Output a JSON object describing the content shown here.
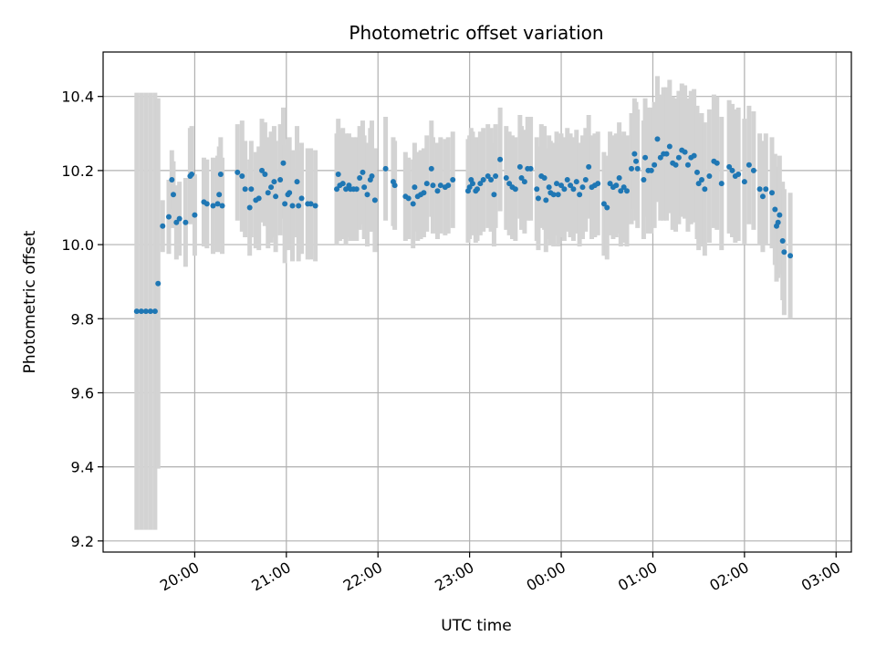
{
  "chart_data": {
    "type": "scatter",
    "title": "Photometric offset variation",
    "xlabel": "UTC time",
    "ylabel": "Photometric offset",
    "x_ticks": [
      "20:00",
      "21:00",
      "22:00",
      "23:00",
      "00:00",
      "01:00",
      "02:00",
      "03:00"
    ],
    "y_ticks": [
      "9.2",
      "9.4",
      "9.6",
      "9.8",
      "10.0",
      "10.2",
      "10.4"
    ],
    "x_unit": "hours since 19:00 UTC",
    "xlim": [
      "19:00",
      "03:10"
    ],
    "ylim": [
      9.17,
      10.52
    ],
    "grid": true,
    "colors": {
      "point": "#1f77b4",
      "errorbar": "#d3d3d3",
      "grid": "#b0b0b0"
    },
    "series": [
      {
        "points": [
          [
            "19:22",
            9.82,
            0.59
          ],
          [
            "19:25",
            9.82,
            0.59
          ],
          [
            "19:28",
            9.82,
            0.59
          ],
          [
            "19:31",
            9.82,
            0.59
          ],
          [
            "19:34",
            9.82,
            0.59
          ],
          [
            "19:36",
            9.895,
            0.5
          ],
          [
            "19:39",
            10.05,
            0.07
          ],
          [
            "19:43",
            10.075,
            0.1
          ],
          [
            "19:45",
            10.175,
            0.08
          ],
          [
            "19:46",
            10.135,
            0.09
          ],
          [
            "19:48",
            10.06,
            0.1
          ],
          [
            "19:50",
            10.07,
            0.1
          ],
          [
            "19:54",
            10.06,
            0.12
          ],
          [
            "19:57",
            10.185,
            0.13
          ],
          [
            "19:58",
            10.19,
            0.13
          ],
          [
            "20:00",
            10.08,
            0.11
          ],
          [
            "20:06",
            10.115,
            0.12
          ],
          [
            "20:08",
            10.11,
            0.12
          ],
          [
            "20:12",
            10.105,
            0.13
          ],
          [
            "20:15",
            10.11,
            0.13
          ],
          [
            "20:16",
            10.135,
            0.13
          ],
          [
            "20:17",
            10.19,
            0.1
          ],
          [
            "20:18",
            10.105,
            0.13
          ],
          [
            "20:28",
            10.195,
            0.13
          ],
          [
            "20:31",
            10.185,
            0.15
          ],
          [
            "20:33",
            10.15,
            0.13
          ],
          [
            "20:36",
            10.1,
            0.13
          ],
          [
            "20:37",
            10.15,
            0.13
          ],
          [
            "20:40",
            10.12,
            0.13
          ],
          [
            "20:42",
            10.125,
            0.14
          ],
          [
            "20:44",
            10.2,
            0.14
          ],
          [
            "20:46",
            10.19,
            0.14
          ],
          [
            "20:48",
            10.14,
            0.15
          ],
          [
            "20:50",
            10.155,
            0.15
          ],
          [
            "20:52",
            10.17,
            0.15
          ],
          [
            "20:53",
            10.13,
            0.15
          ],
          [
            "20:56",
            10.175,
            0.15
          ],
          [
            "20:58",
            10.22,
            0.15
          ],
          [
            "20:59",
            10.11,
            0.16
          ],
          [
            "21:01",
            10.135,
            0.15
          ],
          [
            "21:02",
            10.14,
            0.15
          ],
          [
            "21:04",
            10.105,
            0.15
          ],
          [
            "21:07",
            10.17,
            0.15
          ],
          [
            "21:08",
            10.105,
            0.15
          ],
          [
            "21:10",
            10.125,
            0.15
          ],
          [
            "21:14",
            10.11,
            0.15
          ],
          [
            "21:16",
            10.11,
            0.15
          ],
          [
            "21:19",
            10.105,
            0.15
          ],
          [
            "21:33",
            10.15,
            0.15
          ],
          [
            "21:34",
            10.19,
            0.15
          ],
          [
            "21:35",
            10.16,
            0.15
          ],
          [
            "21:37",
            10.165,
            0.15
          ],
          [
            "21:39",
            10.15,
            0.15
          ],
          [
            "21:41",
            10.16,
            0.14
          ],
          [
            "21:42",
            10.15,
            0.14
          ],
          [
            "21:44",
            10.15,
            0.14
          ],
          [
            "21:46",
            10.15,
            0.14
          ],
          [
            "21:48",
            10.18,
            0.14
          ],
          [
            "21:50",
            10.195,
            0.14
          ],
          [
            "21:51",
            10.155,
            0.14
          ],
          [
            "21:53",
            10.135,
            0.14
          ],
          [
            "21:55",
            10.175,
            0.14
          ],
          [
            "21:56",
            10.185,
            0.15
          ],
          [
            "21:58",
            10.12,
            0.14
          ],
          [
            "22:05",
            10.205,
            0.14
          ],
          [
            "22:10",
            10.17,
            0.12
          ],
          [
            "22:11",
            10.16,
            0.12
          ],
          [
            "22:18",
            10.13,
            0.12
          ],
          [
            "22:20",
            10.125,
            0.11
          ],
          [
            "22:23",
            10.11,
            0.12
          ],
          [
            "22:24",
            10.155,
            0.12
          ],
          [
            "22:26",
            10.13,
            0.12
          ],
          [
            "22:28",
            10.135,
            0.12
          ],
          [
            "22:30",
            10.14,
            0.12
          ],
          [
            "22:32",
            10.165,
            0.13
          ],
          [
            "22:35",
            10.205,
            0.13
          ],
          [
            "22:36",
            10.16,
            0.13
          ],
          [
            "22:39",
            10.145,
            0.13
          ],
          [
            "22:41",
            10.16,
            0.13
          ],
          [
            "22:44",
            10.155,
            0.13
          ],
          [
            "22:46",
            10.16,
            0.13
          ],
          [
            "22:49",
            10.175,
            0.13
          ],
          [
            "22:59",
            10.145,
            0.14
          ],
          [
            "23:00",
            10.155,
            0.14
          ],
          [
            "23:01",
            10.175,
            0.14
          ],
          [
            "23:02",
            10.165,
            0.14
          ],
          [
            "23:04",
            10.145,
            0.14
          ],
          [
            "23:05",
            10.15,
            0.14
          ],
          [
            "23:07",
            10.165,
            0.14
          ],
          [
            "23:09",
            10.175,
            0.14
          ],
          [
            "23:12",
            10.185,
            0.14
          ],
          [
            "23:14",
            10.175,
            0.14
          ],
          [
            "23:16",
            10.135,
            0.14
          ],
          [
            "23:17",
            10.185,
            0.14
          ],
          [
            "23:20",
            10.23,
            0.14
          ],
          [
            "23:24",
            10.18,
            0.14
          ],
          [
            "23:26",
            10.165,
            0.14
          ],
          [
            "23:28",
            10.155,
            0.14
          ],
          [
            "23:30",
            10.15,
            0.14
          ],
          [
            "23:33",
            10.21,
            0.14
          ],
          [
            "23:34",
            10.18,
            0.14
          ],
          [
            "23:36",
            10.17,
            0.14
          ],
          [
            "23:38",
            10.205,
            0.14
          ],
          [
            "23:40",
            10.205,
            0.14
          ],
          [
            "23:44",
            10.15,
            0.14
          ],
          [
            "23:45",
            10.125,
            0.14
          ],
          [
            "23:47",
            10.185,
            0.14
          ],
          [
            "23:49",
            10.18,
            0.14
          ],
          [
            "23:50",
            10.12,
            0.14
          ],
          [
            "23:52",
            10.155,
            0.14
          ],
          [
            "23:53",
            10.14,
            0.14
          ],
          [
            "23:55",
            10.135,
            0.14
          ],
          [
            "23:57",
            10.165,
            0.14
          ],
          [
            "23:58",
            10.135,
            0.14
          ],
          [
            "00:00",
            10.16,
            0.14
          ],
          [
            "00:02",
            10.15,
            0.14
          ],
          [
            "00:04",
            10.175,
            0.14
          ],
          [
            "00:06",
            10.16,
            0.14
          ],
          [
            "00:08",
            10.15,
            0.14
          ],
          [
            "00:10",
            10.17,
            0.14
          ],
          [
            "00:12",
            10.135,
            0.14
          ],
          [
            "00:14",
            10.155,
            0.14
          ],
          [
            "00:16",
            10.175,
            0.14
          ],
          [
            "00:18",
            10.21,
            0.14
          ],
          [
            "00:20",
            10.155,
            0.14
          ],
          [
            "00:22",
            10.16,
            0.14
          ],
          [
            "00:24",
            10.165,
            0.14
          ],
          [
            "00:28",
            10.11,
            0.14
          ],
          [
            "00:30",
            10.1,
            0.14
          ],
          [
            "00:32",
            10.165,
            0.14
          ],
          [
            "00:34",
            10.155,
            0.14
          ],
          [
            "00:36",
            10.16,
            0.14
          ],
          [
            "00:38",
            10.18,
            0.15
          ],
          [
            "00:39",
            10.145,
            0.15
          ],
          [
            "00:41",
            10.155,
            0.15
          ],
          [
            "00:43",
            10.145,
            0.15
          ],
          [
            "00:46",
            10.205,
            0.15
          ],
          [
            "00:48",
            10.245,
            0.15
          ],
          [
            "00:49",
            10.225,
            0.16
          ],
          [
            "00:50",
            10.205,
            0.16
          ],
          [
            "00:54",
            10.175,
            0.16
          ],
          [
            "00:55",
            10.235,
            0.16
          ],
          [
            "00:57",
            10.2,
            0.17
          ],
          [
            "00:59",
            10.2,
            0.17
          ],
          [
            "01:01",
            10.215,
            0.17
          ],
          [
            "01:03",
            10.285,
            0.17
          ],
          [
            "01:05",
            10.235,
            0.17
          ],
          [
            "01:07",
            10.245,
            0.18
          ],
          [
            "01:09",
            10.245,
            0.18
          ],
          [
            "01:11",
            10.265,
            0.18
          ],
          [
            "01:13",
            10.22,
            0.18
          ],
          [
            "01:15",
            10.215,
            0.18
          ],
          [
            "01:17",
            10.235,
            0.18
          ],
          [
            "01:19",
            10.255,
            0.18
          ],
          [
            "01:21",
            10.25,
            0.18
          ],
          [
            "01:23",
            10.215,
            0.18
          ],
          [
            "01:25",
            10.235,
            0.18
          ],
          [
            "01:27",
            10.24,
            0.18
          ],
          [
            "01:29",
            10.195,
            0.18
          ],
          [
            "01:30",
            10.165,
            0.18
          ],
          [
            "01:32",
            10.175,
            0.18
          ],
          [
            "01:34",
            10.15,
            0.18
          ],
          [
            "01:37",
            10.185,
            0.18
          ],
          [
            "01:40",
            10.225,
            0.18
          ],
          [
            "01:42",
            10.22,
            0.18
          ],
          [
            "01:45",
            10.165,
            0.18
          ],
          [
            "01:50",
            10.21,
            0.18
          ],
          [
            "01:52",
            10.2,
            0.18
          ],
          [
            "01:54",
            10.185,
            0.18
          ],
          [
            "01:56",
            10.19,
            0.18
          ],
          [
            "02:00",
            10.17,
            0.17
          ],
          [
            "02:03",
            10.215,
            0.16
          ],
          [
            "02:06",
            10.2,
            0.16
          ],
          [
            "02:10",
            10.15,
            0.15
          ],
          [
            "02:12",
            10.13,
            0.15
          ],
          [
            "02:14",
            10.15,
            0.15
          ],
          [
            "02:18",
            10.14,
            0.15
          ],
          [
            "02:20",
            10.095,
            0.15
          ],
          [
            "02:21",
            10.05,
            0.15
          ],
          [
            "02:22",
            10.06,
            0.15
          ],
          [
            "02:23",
            10.08,
            0.16
          ],
          [
            "02:25",
            10.01,
            0.16
          ],
          [
            "02:26",
            9.98,
            0.17
          ],
          [
            "02:30",
            9.97,
            0.17
          ]
        ]
      }
    ]
  }
}
